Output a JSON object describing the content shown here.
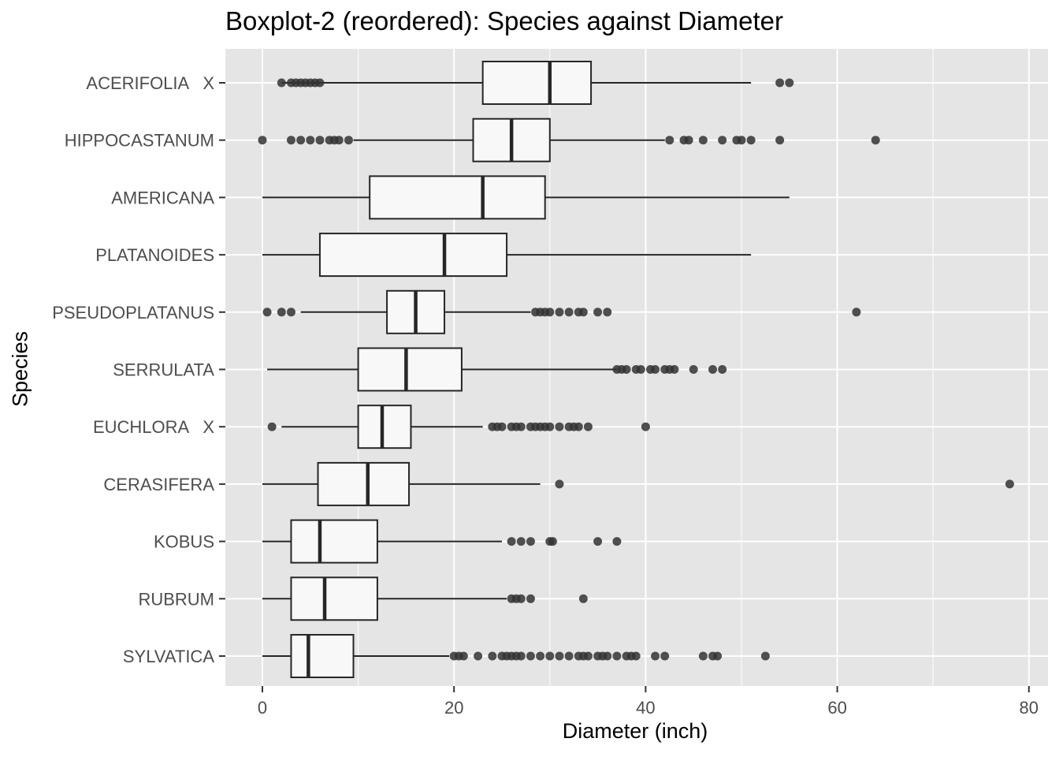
{
  "chart_data": {
    "type": "boxplot",
    "title": "Boxplot-2 (reordered): Species against Diameter",
    "xlabel": "Diameter (inch)",
    "ylabel": "Species",
    "xlim": [
      -4,
      81
    ],
    "xticks": [
      0,
      20,
      40,
      60,
      80
    ],
    "grid": true,
    "legend": "none",
    "colors": {
      "panel": "#e5e5e5",
      "grid": "#ffffff",
      "box_fill": "#f8f8f8",
      "box_stroke": "#262626",
      "outlier": "#333333",
      "tick_label": "#4d4d4d"
    },
    "categories": [
      "ACERIFOLIA   X",
      "HIPPOCASTANUM",
      "AMERICANA",
      "PLATANOIDES",
      "PSEUDOPLATANUS",
      "SERRULATA",
      "EUCHLORA   X",
      "CERASIFERA",
      "KOBUS",
      "RUBRUM",
      "SYLVATICA"
    ],
    "boxes": [
      {
        "species": "ACERIFOLIA   X",
        "whisker_low": 2,
        "q1": 23,
        "median": 30,
        "q3": 34.3,
        "whisker_high": 51,
        "outliers": [
          2,
          3,
          3.5,
          4,
          4.5,
          5,
          5.5,
          6,
          54,
          55
        ]
      },
      {
        "species": "HIPPOCASTANUM",
        "whisker_low": 9.5,
        "q1": 22,
        "median": 26,
        "q3": 30,
        "whisker_high": 42,
        "outliers": [
          0,
          3,
          4,
          5,
          6,
          7,
          7.5,
          8,
          9,
          42.5,
          44,
          44.5,
          46,
          48,
          49.5,
          50,
          51,
          54,
          64
        ]
      },
      {
        "species": "AMERICANA",
        "whisker_low": 0,
        "q1": 11.2,
        "median": 23,
        "q3": 29.5,
        "whisker_high": 55,
        "outliers": []
      },
      {
        "species": "PLATANOIDES",
        "whisker_low": 0,
        "q1": 6,
        "median": 19,
        "q3": 25.5,
        "whisker_high": 51,
        "outliers": []
      },
      {
        "species": "PSEUDOPLATANUS",
        "whisker_low": 4,
        "q1": 13,
        "median": 16,
        "q3": 19,
        "whisker_high": 28,
        "outliers": [
          0.5,
          2,
          3,
          28.5,
          29,
          29.5,
          30,
          31,
          32,
          33,
          33.5,
          35,
          36,
          62
        ]
      },
      {
        "species": "SERRULATA",
        "whisker_low": 0.5,
        "q1": 10,
        "median": 15,
        "q3": 20.8,
        "whisker_high": 37,
        "outliers": [
          37,
          37.5,
          38,
          39,
          39.5,
          40.5,
          41,
          42,
          42.5,
          43,
          45,
          47,
          48
        ]
      },
      {
        "species": "EUCHLORA   X",
        "whisker_low": 2,
        "q1": 10,
        "median": 12.5,
        "q3": 15.5,
        "whisker_high": 23,
        "outliers": [
          1,
          24,
          24.5,
          25,
          26,
          26.5,
          27,
          28,
          28.5,
          29,
          29.5,
          30,
          31,
          32,
          32.5,
          33,
          34,
          40
        ]
      },
      {
        "species": "CERASIFERA",
        "whisker_low": 0,
        "q1": 5.8,
        "median": 11,
        "q3": 15.3,
        "whisker_high": 29,
        "outliers": [
          31,
          78
        ]
      },
      {
        "species": "KOBUS",
        "whisker_low": 0,
        "q1": 3,
        "median": 6,
        "q3": 12,
        "whisker_high": 25,
        "outliers": [
          26,
          27,
          28,
          30,
          30.3,
          35,
          37
        ]
      },
      {
        "species": "RUBRUM",
        "whisker_low": 0,
        "q1": 3,
        "median": 6.5,
        "q3": 12,
        "whisker_high": 25.5,
        "outliers": [
          26,
          26.5,
          27,
          28,
          33.5
        ]
      },
      {
        "species": "SYLVATICA",
        "whisker_low": 0,
        "q1": 3,
        "median": 4.8,
        "q3": 9.5,
        "whisker_high": 19.5,
        "outliers": [
          20,
          20.5,
          21,
          22.5,
          24,
          25,
          25.5,
          26,
          26.5,
          27,
          28,
          29,
          30,
          31,
          32,
          33,
          33.5,
          34,
          35,
          35.5,
          36,
          37,
          38,
          38.5,
          39,
          41,
          42,
          46,
          47,
          47.5,
          52.5
        ]
      }
    ]
  }
}
